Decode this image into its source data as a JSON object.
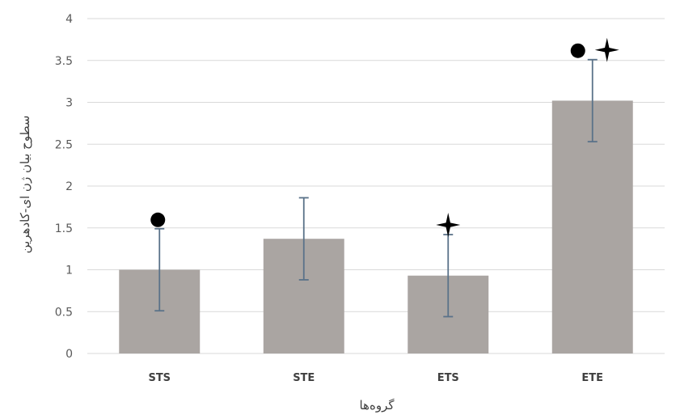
{
  "chart_data": {
    "type": "bar",
    "title": "",
    "xlabel": "گروه‌ها",
    "ylabel": "سطوح بیان ژن ای-کادهرین",
    "categories": [
      "STS",
      "STE",
      "ETS",
      "ETE"
    ],
    "series": [
      {
        "values": [
          1.0,
          1.37,
          0.93,
          3.02
        ],
        "errors": [
          0.49,
          0.49,
          0.49,
          0.49
        ]
      }
    ],
    "ylim": [
      0,
      4
    ],
    "yticks": [
      "0",
      "0.5",
      "1",
      "1.5",
      "2",
      "2.5",
      "3",
      "3.5",
      "4"
    ],
    "grid": true,
    "legend": "none",
    "annotations": [
      {
        "category": "STS",
        "markers": [
          "circle"
        ]
      },
      {
        "category": "ETS",
        "markers": [
          "star"
        ]
      },
      {
        "category": "ETE",
        "markers": [
          "circle",
          "star"
        ]
      }
    ],
    "colors": {
      "bar": "#aaa5a2",
      "error_bar": "#5a7289",
      "grid": "#d9d9d9",
      "marker": "#000000"
    }
  }
}
